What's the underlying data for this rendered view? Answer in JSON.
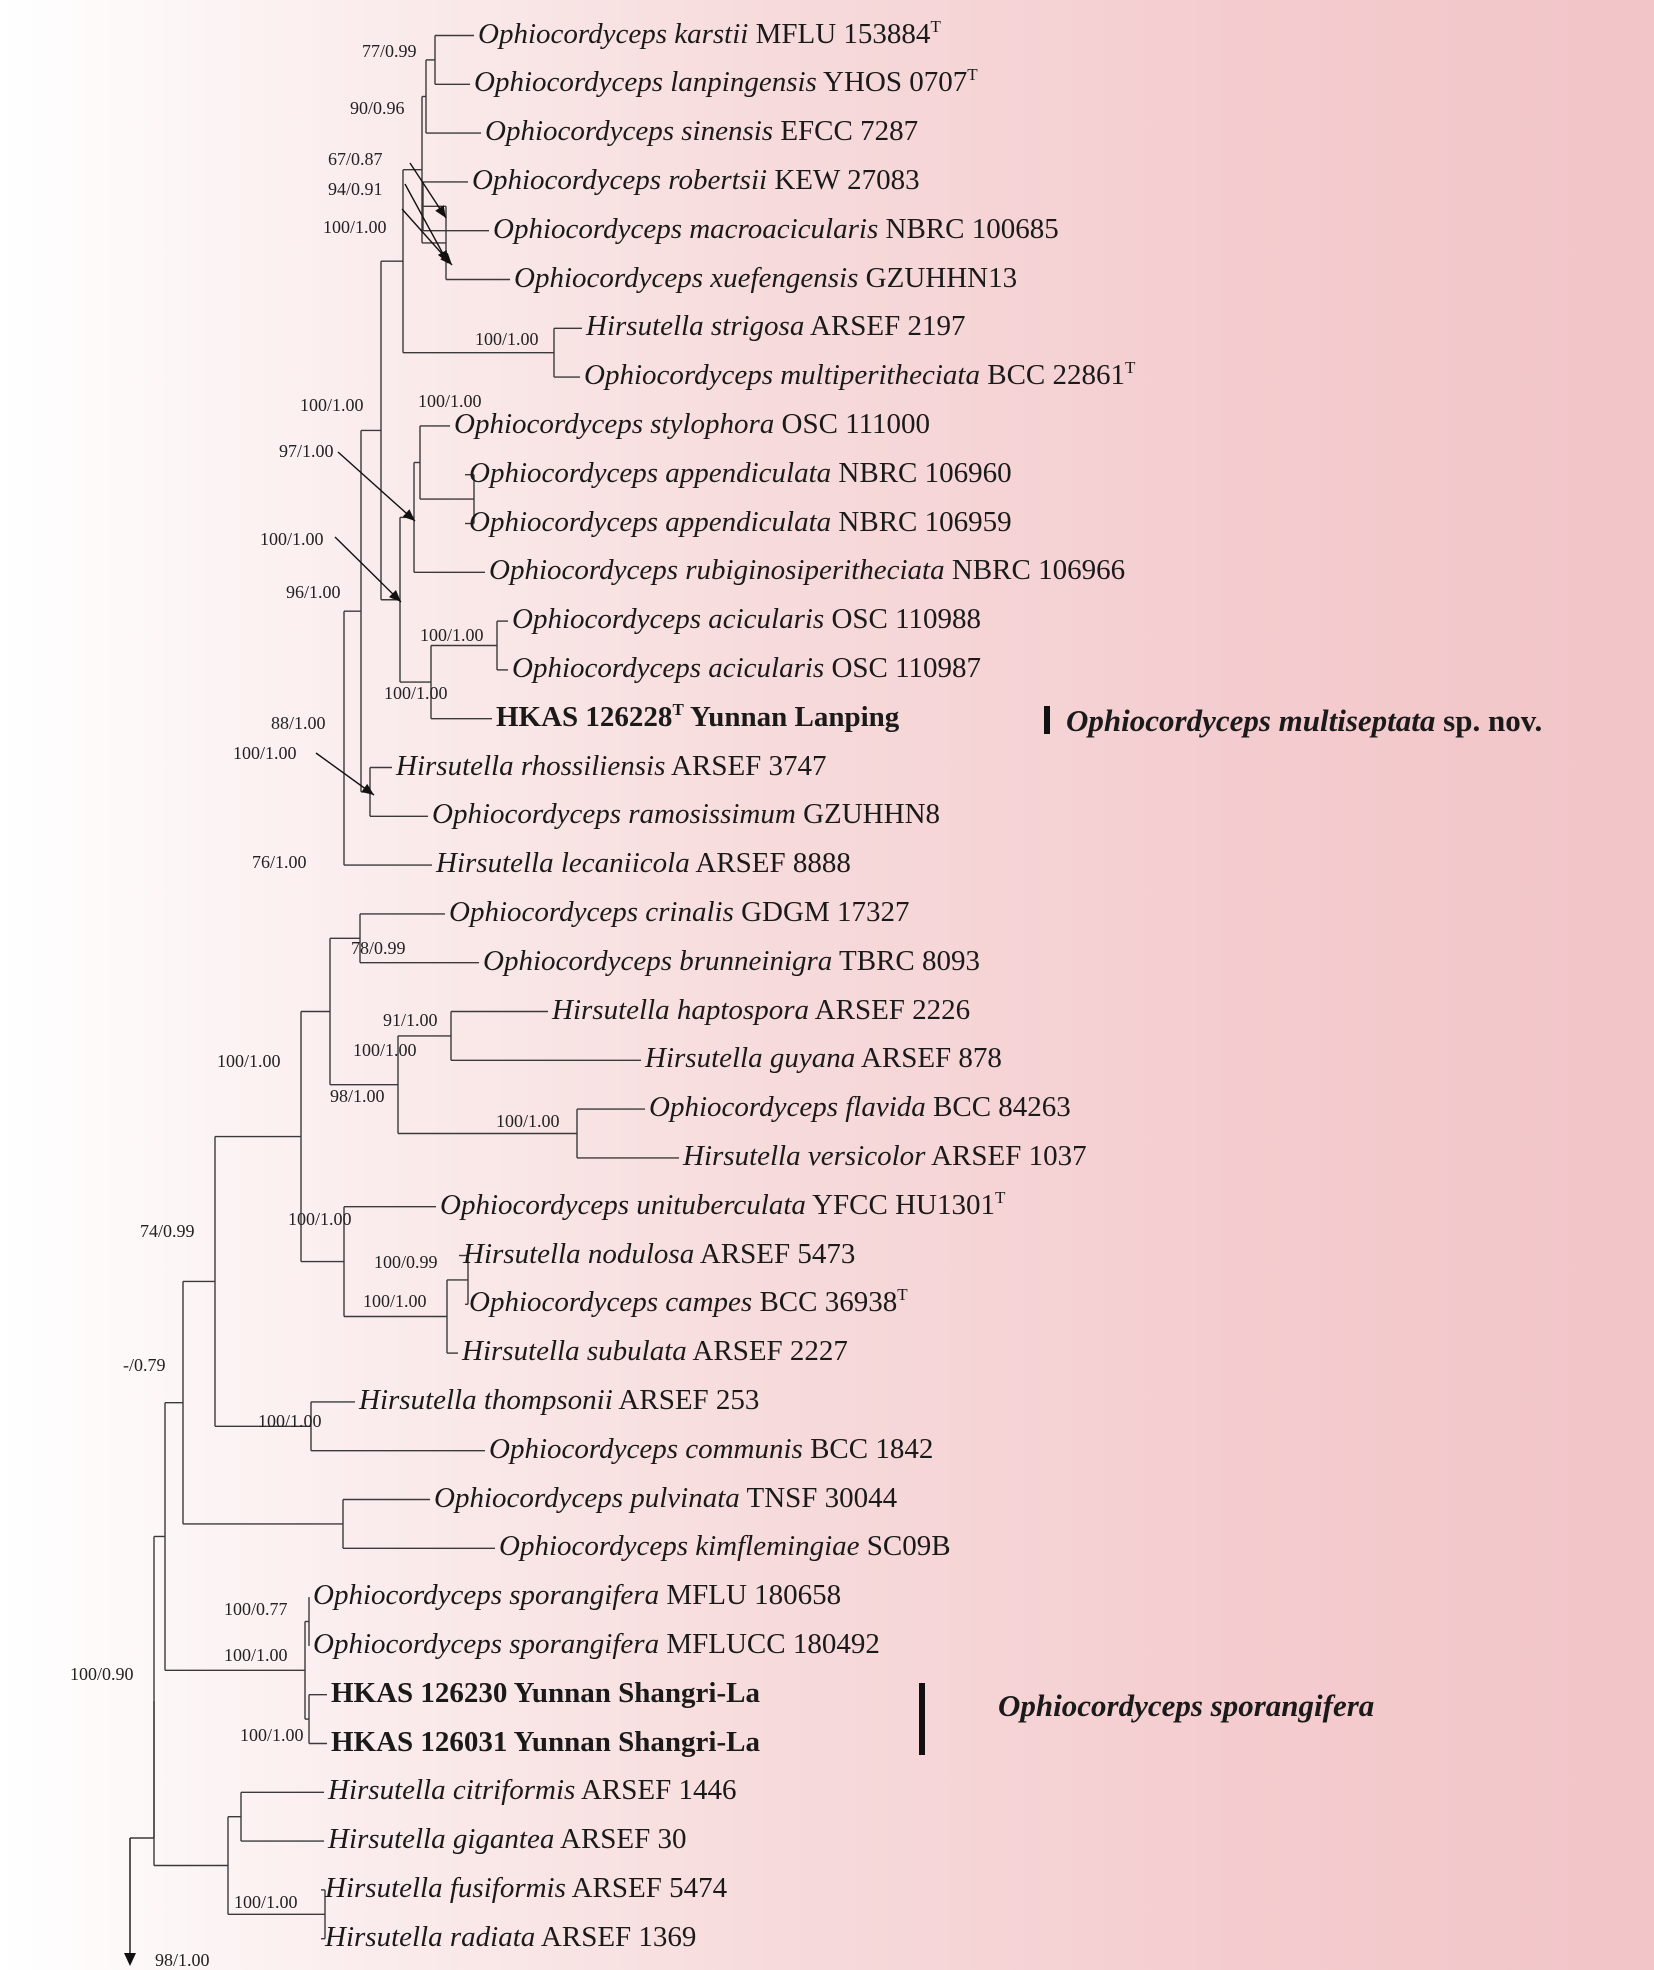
{
  "taxa": [
    {
      "name": "Ophiocordyceps karstii",
      "voucher": "MFLU 153884",
      "type": true
    },
    {
      "name": "Ophiocordyceps lanpingensis",
      "voucher": "YHOS 0707",
      "type": true
    },
    {
      "name": "Ophiocordyceps sinensis",
      "voucher": "EFCC 7287",
      "type": false
    },
    {
      "name": "Ophiocordyceps robertsii",
      "voucher": "KEW 27083",
      "type": false
    },
    {
      "name": "Ophiocordyceps macroacicularis",
      "voucher": "NBRC 100685",
      "type": false
    },
    {
      "name": "Ophiocordyceps xuefengensis",
      "voucher": "GZUHHN13",
      "type": false
    },
    {
      "name": "Hirsutella strigosa",
      "voucher": "ARSEF 2197",
      "type": false
    },
    {
      "name": "Ophiocordyceps multiperitheciata",
      "voucher": "BCC 22861",
      "type": true
    },
    {
      "name": "Ophiocordyceps stylophora",
      "voucher": "OSC 111000",
      "type": false
    },
    {
      "name": "Ophiocordyceps appendiculata",
      "voucher": "NBRC 106960",
      "type": false
    },
    {
      "name": "Ophiocordyceps appendiculata",
      "voucher": "NBRC 106959",
      "type": false
    },
    {
      "name": "Ophiocordyceps rubiginosiperitheciata",
      "voucher": "NBRC 106966",
      "type": false
    },
    {
      "name": "Ophiocordyceps acicularis",
      "voucher": "OSC 110988",
      "type": false
    },
    {
      "name": "Ophiocordyceps acicularis",
      "voucher": "OSC 110987",
      "type": false
    },
    {
      "name": "",
      "voucher": "HKAS 126228",
      "voucher_suffix": "Yunnan Lanping",
      "type": true,
      "bold": true
    },
    {
      "name": "Hirsutella rhossiliensis",
      "voucher": "ARSEF 3747",
      "type": false
    },
    {
      "name": "Ophiocordyceps ramosissimum",
      "voucher": "GZUHHN8",
      "type": false
    },
    {
      "name": "Hirsutella lecaniicola",
      "voucher": "ARSEF 8888",
      "type": false
    },
    {
      "name": "Ophiocordyceps crinalis",
      "voucher": "GDGM 17327",
      "type": false
    },
    {
      "name": "Ophiocordyceps brunneinigra",
      "voucher": "TBRC 8093",
      "type": false
    },
    {
      "name": "Hirsutella haptospora",
      "voucher": "ARSEF 2226",
      "type": false
    },
    {
      "name": "Hirsutella guyana",
      "voucher": "ARSEF 878",
      "type": false
    },
    {
      "name": "Ophiocordyceps flavida",
      "voucher": "BCC 84263",
      "type": false
    },
    {
      "name": "Hirsutella versicolor",
      "voucher": "ARSEF 1037",
      "type": false
    },
    {
      "name": "Ophiocordyceps unituberculata",
      "voucher": "YFCC HU1301",
      "type": true
    },
    {
      "name": "Hirsutella nodulosa",
      "voucher": "ARSEF 5473",
      "type": false
    },
    {
      "name": "Ophiocordyceps campes",
      "voucher": "BCC 36938",
      "type": true
    },
    {
      "name": "Hirsutella subulata",
      "voucher": "ARSEF 2227",
      "type": false
    },
    {
      "name": "Hirsutella thompsonii",
      "voucher": "ARSEF 253",
      "type": false
    },
    {
      "name": "Ophiocordyceps communis",
      "voucher": "BCC 1842",
      "type": false
    },
    {
      "name": "Ophiocordyceps pulvinata",
      "voucher": "TNSF 30044",
      "type": false
    },
    {
      "name": "Ophiocordyceps kimflemingiae",
      "voucher": "SC09B",
      "type": false
    },
    {
      "name": "Ophiocordyceps sporangifera",
      "voucher": "MFLU 180658",
      "type": false
    },
    {
      "name": "Ophiocordyceps sporangifera",
      "voucher": "MFLUCC 180492",
      "type": false
    },
    {
      "name": "",
      "voucher": "HKAS 126230  Yunnan Shangri-La",
      "type": false,
      "bold": true
    },
    {
      "name": "",
      "voucher": "HKAS 126031 Yunnan Shangri-La",
      "type": false,
      "bold": true
    },
    {
      "name": "Hirsutella citriformis",
      "voucher": "ARSEF 1446",
      "type": false
    },
    {
      "name": "Hirsutella gigantea",
      "voucher": "ARSEF 30",
      "type": false
    },
    {
      "name": "Hirsutella fusiformis",
      "voucher": "ARSEF 5474",
      "type": false
    },
    {
      "name": "Hirsutella radiata",
      "voucher": "ARSEF 1369",
      "type": false
    }
  ],
  "supports": [
    "77/0.99",
    "90/0.96",
    "67/0.87",
    "94/0.91",
    "100/1.00",
    "100/1.00",
    "100/1.00",
    "97/1.00",
    "100/1.00",
    "100/1.00",
    "96/1.00",
    "100/1.00",
    "100/1.00",
    "88/1.00",
    "100/1.00",
    "76/1.00",
    "78/0.99",
    "91/1.00",
    "100/1.00",
    "98/1.00",
    "100/1.00",
    "100/0.99",
    "100/1.00",
    "100/1.00",
    "74/0.99",
    "100/1.00",
    "100/1.00",
    "-/0.79",
    "100/0.77",
    "100/1.00",
    "100/1.00",
    "100/0.90",
    "98/1.00",
    "100/1.00"
  ],
  "type_marker": "T",
  "clade_labels": [
    {
      "genus_species": "Ophiocordyceps multiseptata",
      "suffix": " sp. nov."
    },
    {
      "genus_species": "Ophiocordyceps sporangifera",
      "suffix": ""
    }
  ]
}
